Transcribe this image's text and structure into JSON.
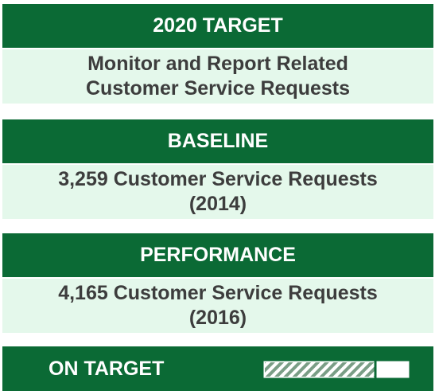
{
  "sections": [
    {
      "title": "2020 TARGET",
      "lines": [
        "Monitor and Report Related",
        "Customer Service Requests"
      ]
    },
    {
      "title": "BASELINE",
      "lines": [
        "3,259 Customer Service Requests",
        "(2014)"
      ]
    },
    {
      "title": "PERFORMANCE",
      "lines": [
        "4,165 Customer Service Requests",
        "(2016)"
      ]
    }
  ],
  "status": {
    "label": "ON TARGET"
  }
}
